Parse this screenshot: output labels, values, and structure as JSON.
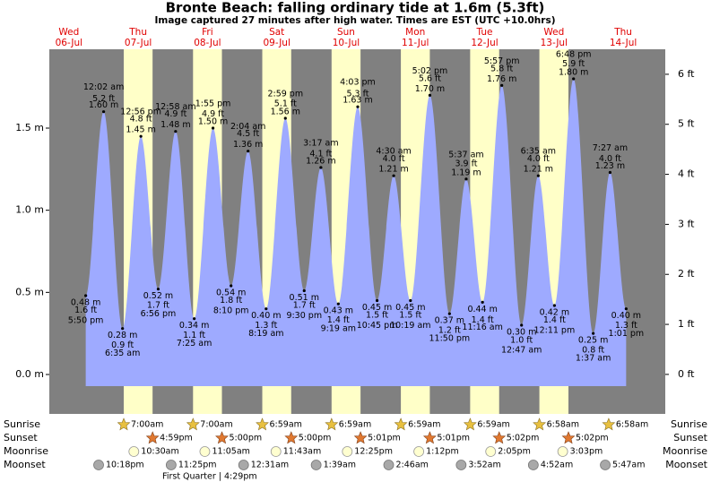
{
  "chart_data": {
    "type": "tide",
    "title": "Bronte Beach: falling  ordinary tide at 1.6m (5.3ft)",
    "subtitle": "Image captured 27 minutes after high water. Times are EST (UTC +10.0hrs)",
    "ylim": [
      -0.24,
      1.98
    ],
    "yticks": [
      {
        "value": 0,
        "label": "0.0 m"
      },
      {
        "value": 0.5,
        "label": "0.5 m"
      },
      {
        "value": 1,
        "label": "1.0 m"
      },
      {
        "value": 1.5,
        "label": "1.5 m"
      }
    ],
    "y2lim": [
      -0.79,
      6.5
    ],
    "y2ticks": [
      {
        "value": 0,
        "label": "0 ft"
      },
      {
        "value": 1,
        "label": "1 ft"
      },
      {
        "value": 2,
        "label": "2 ft"
      },
      {
        "value": 3,
        "label": "3 ft"
      },
      {
        "value": 4,
        "label": "4 ft"
      },
      {
        "value": 5,
        "label": "5 ft"
      },
      {
        "value": 6,
        "label": "6 ft"
      }
    ],
    "row_labels": {
      "sunrise": "Sunrise",
      "sunset": "Sunset",
      "moonrise": "Moonrise",
      "moonset": "Moonset"
    },
    "days": [
      {
        "weekday": "Wed",
        "date": "06-Jul",
        "tides": [
          {
            "time": "5:50 pm",
            "m": {
              "value": 0.48,
              "label": "0.48 m"
            },
            "ft": {
              "value": 1.6,
              "label": "1.6 ft"
            }
          }
        ],
        "moonset": "10:18pm"
      },
      {
        "weekday": "Thu",
        "date": "07-Jul",
        "tides": [
          {
            "time": "12:02 am",
            "m": {
              "value": 1.6,
              "label": "1.60 m"
            },
            "ft": {
              "value": 5.2,
              "label": "5.2 ft"
            }
          },
          {
            "time": "6:35 am",
            "m": {
              "value": 0.28,
              "label": "0.28 m"
            },
            "ft": {
              "value": 0.9,
              "label": "0.9 ft"
            }
          },
          {
            "time": "12:56 pm",
            "m": {
              "value": 1.45,
              "label": "1.45 m"
            },
            "ft": {
              "value": 4.8,
              "label": "4.8 ft"
            }
          },
          {
            "time": "6:56 pm",
            "m": {
              "value": 0.52,
              "label": "0.52 m"
            },
            "ft": {
              "value": 1.7,
              "label": "1.7 ft"
            }
          }
        ],
        "sunrise": "7:00am",
        "sunset": "4:59pm",
        "moonrise": "10:30am",
        "moonset": "11:25pm"
      },
      {
        "weekday": "Fri",
        "date": "08-Jul",
        "tides": [
          {
            "time": "12:58 am",
            "m": {
              "value": 1.48,
              "label": "1.48 m"
            },
            "ft": {
              "value": 4.9,
              "label": "4.9 ft"
            }
          },
          {
            "time": "7:25 am",
            "m": {
              "value": 0.34,
              "label": "0.34 m"
            },
            "ft": {
              "value": 1.1,
              "label": "1.1 ft"
            }
          },
          {
            "time": "1:55 pm",
            "m": {
              "value": 1.5,
              "label": "1.50 m"
            },
            "ft": {
              "value": 4.9,
              "label": "4.9 ft"
            }
          },
          {
            "time": "8:10 pm",
            "m": {
              "value": 0.54,
              "label": "0.54 m"
            },
            "ft": {
              "value": 1.8,
              "label": "1.8 ft"
            }
          }
        ],
        "sunrise": "7:00am",
        "sunset": "5:00pm",
        "moonrise": "11:05am",
        "moon_phase": "First Quarter | 4:29pm"
      },
      {
        "weekday": "Sat",
        "date": "09-Jul",
        "tides": [
          {
            "time": "2:04 am",
            "m": {
              "value": 1.36,
              "label": "1.36 m"
            },
            "ft": {
              "value": 4.5,
              "label": "4.5 ft"
            }
          },
          {
            "time": "8:19 am",
            "m": {
              "value": 0.4,
              "label": "0.40 m"
            },
            "ft": {
              "value": 1.3,
              "label": "1.3 ft"
            }
          },
          {
            "time": "2:59 pm",
            "m": {
              "value": 1.56,
              "label": "1.56 m"
            },
            "ft": {
              "value": 5.1,
              "label": "5.1 ft"
            }
          },
          {
            "time": "9:30 pm",
            "m": {
              "value": 0.51,
              "label": "0.51 m"
            },
            "ft": {
              "value": 1.7,
              "label": "1.7 ft"
            }
          }
        ],
        "sunrise": "6:59am",
        "sunset": "5:00pm",
        "moonrise": "11:43am",
        "moonset": "12:31am"
      },
      {
        "weekday": "Sun",
        "date": "10-Jul",
        "tides": [
          {
            "time": "3:17 am",
            "m": {
              "value": 1.26,
              "label": "1.26 m"
            },
            "ft": {
              "value": 4.1,
              "label": "4.1 ft"
            }
          },
          {
            "time": "9:19 am",
            "m": {
              "value": 0.43,
              "label": "0.43 m"
            },
            "ft": {
              "value": 1.4,
              "label": "1.4 ft"
            }
          },
          {
            "time": "4:03 pm",
            "m": {
              "value": 1.63,
              "label": "1.63 m"
            },
            "ft": {
              "value": 5.3,
              "label": "5.3 ft"
            }
          },
          {
            "time": "10:45 pm",
            "m": {
              "value": 0.45,
              "label": "0.45 m"
            },
            "ft": {
              "value": 1.5,
              "label": "1.5 ft"
            }
          }
        ],
        "sunrise": "6:59am",
        "sunset": "5:01pm",
        "moonrise": "12:25pm",
        "moonset": "1:39am"
      },
      {
        "weekday": "Mon",
        "date": "11-Jul",
        "tides": [
          {
            "time": "4:30 am",
            "m": {
              "value": 1.21,
              "label": "1.21 m"
            },
            "ft": {
              "value": 4.0,
              "label": "4.0 ft"
            }
          },
          {
            "time": "10:19 am",
            "m": {
              "value": 0.45,
              "label": "0.45 m"
            },
            "ft": {
              "value": 1.5,
              "label": "1.5 ft"
            }
          },
          {
            "time": "5:02 pm",
            "m": {
              "value": 1.7,
              "label": "1.70 m"
            },
            "ft": {
              "value": 5.6,
              "label": "5.6 ft"
            }
          },
          {
            "time": "11:50 pm",
            "m": {
              "value": 0.37,
              "label": "0.37 m"
            },
            "ft": {
              "value": 1.2,
              "label": "1.2 ft"
            }
          }
        ],
        "sunrise": "6:59am",
        "sunset": "5:01pm",
        "moonrise": "1:12pm",
        "moonset": "2:46am"
      },
      {
        "weekday": "Tue",
        "date": "12-Jul",
        "tides": [
          {
            "time": "5:37 am",
            "m": {
              "value": 1.19,
              "label": "1.19 m"
            },
            "ft": {
              "value": 3.9,
              "label": "3.9 ft"
            }
          },
          {
            "time": "11:16 am",
            "m": {
              "value": 0.44,
              "label": "0.44 m"
            },
            "ft": {
              "value": 1.4,
              "label": "1.4 ft"
            }
          },
          {
            "time": "5:57 pm",
            "m": {
              "value": 1.76,
              "label": "1.76 m"
            },
            "ft": {
              "value": 5.8,
              "label": "5.8 ft"
            }
          }
        ],
        "sunrise": "6:59am",
        "sunset": "5:02pm",
        "moonrise": "2:05pm",
        "moonset": "3:52am"
      },
      {
        "weekday": "Wed",
        "date": "13-Jul",
        "tides": [
          {
            "time": "12:47 am",
            "m": {
              "value": 0.3,
              "label": "0.30 m"
            },
            "ft": {
              "value": 1.0,
              "label": "1.0 ft"
            }
          },
          {
            "time": "6:35 am",
            "m": {
              "value": 1.21,
              "label": "1.21 m"
            },
            "ft": {
              "value": 4.0,
              "label": "4.0 ft"
            }
          },
          {
            "time": "12:11 pm",
            "m": {
              "value": 0.42,
              "label": "0.42 m"
            },
            "ft": {
              "value": 1.4,
              "label": "1.4 ft"
            }
          },
          {
            "time": "6:48 pm",
            "m": {
              "value": 1.8,
              "label": "1.80 m"
            },
            "ft": {
              "value": 5.9,
              "label": "5.9 ft"
            }
          }
        ],
        "sunrise": "6:58am",
        "sunset": "5:02pm",
        "moonrise": "3:03pm",
        "moonset": "4:52am"
      },
      {
        "weekday": "Thu",
        "date": "14-Jul",
        "tides": [
          {
            "time": "1:37 am",
            "m": {
              "value": 0.25,
              "label": "0.25 m"
            },
            "ft": {
              "value": 0.8,
              "label": "0.8 ft"
            }
          },
          {
            "time": "7:27 am",
            "m": {
              "value": 1.23,
              "label": "1.23 m"
            },
            "ft": {
              "value": 4.0,
              "label": "4.0 ft"
            }
          },
          {
            "time": "1:01 pm",
            "m": {
              "value": 0.4,
              "label": "0.40 m"
            },
            "ft": {
              "value": 1.3,
              "label": "1.3 ft"
            }
          }
        ],
        "sunrise": "6:58am",
        "moonset": "5:47am"
      }
    ]
  }
}
